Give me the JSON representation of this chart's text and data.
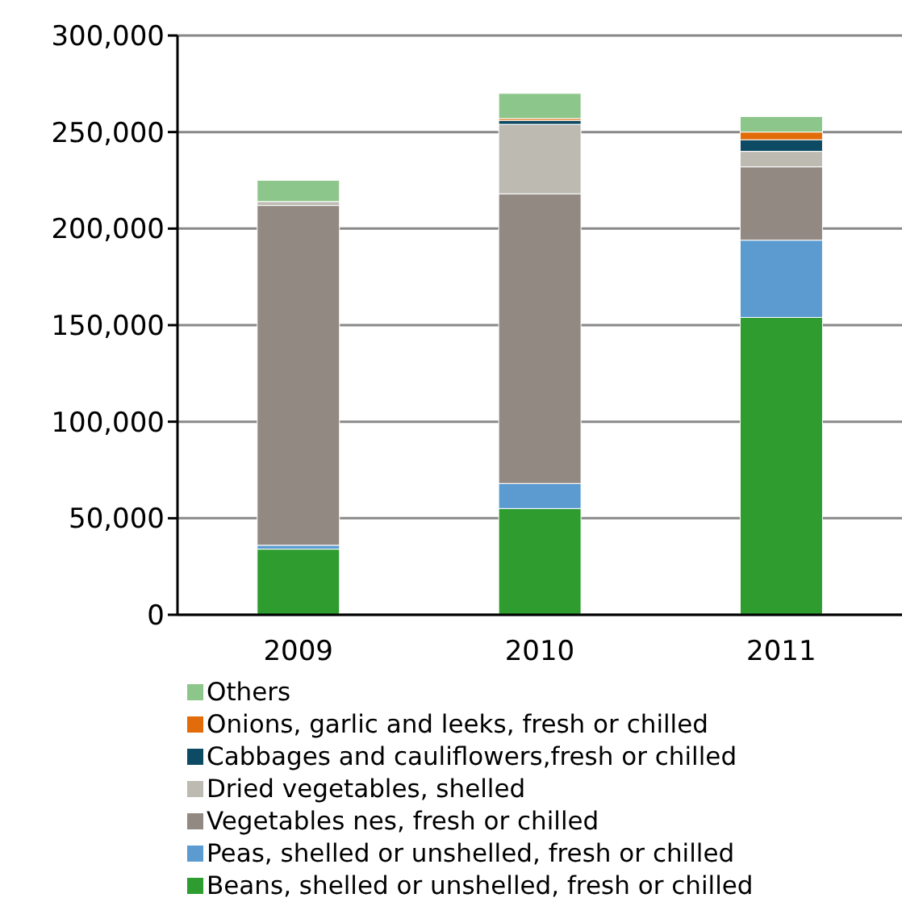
{
  "chart_data": {
    "type": "bar",
    "stacked": true,
    "categories": [
      "2009",
      "2010",
      "2011"
    ],
    "series": [
      {
        "name": "Beans, shelled or unshelled, fresh or chilled",
        "color": "#2e9c2e",
        "values": [
          34000,
          55000,
          154000
        ]
      },
      {
        "name": "Peas, shelled or unshelled, fresh or chilled",
        "color": "#5b9bd0",
        "values": [
          2000,
          13000,
          40000
        ]
      },
      {
        "name": "Vegetables nes, fresh or chilled",
        "color": "#928a82",
        "values": [
          176000,
          150000,
          38000
        ]
      },
      {
        "name": "Dried vegetables, shelled",
        "color": "#bdbab2",
        "values": [
          2000,
          36000,
          8000
        ]
      },
      {
        "name": "Cabbages and cauliflowers,fresh or chilled",
        "color": "#0d4a63",
        "values": [
          0,
          2000,
          6000
        ]
      },
      {
        "name": "Onions, garlic and leeks, fresh or chilled",
        "color": "#e36c0a",
        "values": [
          0,
          1000,
          4000
        ]
      },
      {
        "name": "Others",
        "color": "#8dc68a",
        "values": [
          11000,
          13000,
          8000
        ]
      }
    ],
    "ylim": [
      0,
      300000
    ],
    "yticks": [
      0,
      {
        "value": 50000,
        "label": "50,000"
      },
      {
        "value": 100000,
        "label": "100,000"
      },
      {
        "value": 150000,
        "label": "150,000"
      },
      {
        "value": 200000,
        "label": "200,000"
      },
      {
        "value": 250000,
        "label": "250,000"
      },
      {
        "value": 300000,
        "label": "300,000"
      }
    ],
    "grid": "y",
    "legend": "bottom"
  }
}
